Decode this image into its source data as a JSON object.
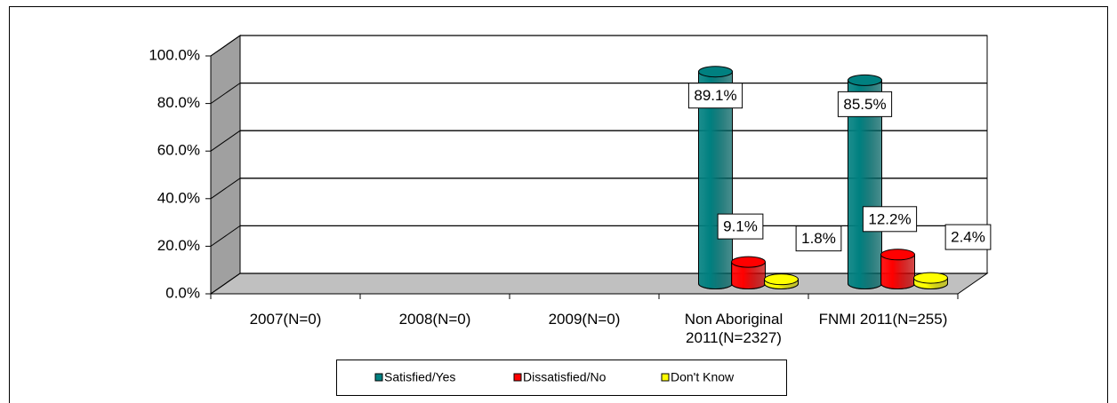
{
  "chart_data": {
    "type": "bar3d",
    "categories": [
      "2007(N=0)",
      "2008(N=0)",
      "2009(N=0)",
      "Non Aboriginal 2011(N=2327)",
      "FNMI 2011(N=255)"
    ],
    "series": [
      {
        "name": "Satisfied/Yes",
        "color": "#008080",
        "values": [
          null,
          null,
          null,
          89.1,
          85.5
        ],
        "value_labels": [
          null,
          null,
          null,
          "89.1%",
          "85.5%"
        ]
      },
      {
        "name": "Dissatisfied/No",
        "color": "#ff0000",
        "values": [
          null,
          null,
          null,
          9.1,
          12.2
        ],
        "value_labels": [
          null,
          null,
          null,
          "9.1%",
          "12.2%"
        ]
      },
      {
        "name": "Don't Know",
        "color": "#ffff00",
        "values": [
          null,
          null,
          null,
          1.8,
          2.4
        ],
        "value_labels": [
          null,
          null,
          null,
          "1.8%",
          "2.4%"
        ]
      }
    ],
    "ylim": [
      0,
      100
    ],
    "yticks": [
      {
        "value": 0,
        "label": "0.0%"
      },
      {
        "value": 20,
        "label": "20.0%"
      },
      {
        "value": 40,
        "label": "40.0%"
      },
      {
        "value": 60,
        "label": "60.0%"
      },
      {
        "value": 80,
        "label": "80.0%"
      },
      {
        "value": 100,
        "label": "100.0%"
      }
    ],
    "grid": true,
    "legend": "bottom"
  }
}
